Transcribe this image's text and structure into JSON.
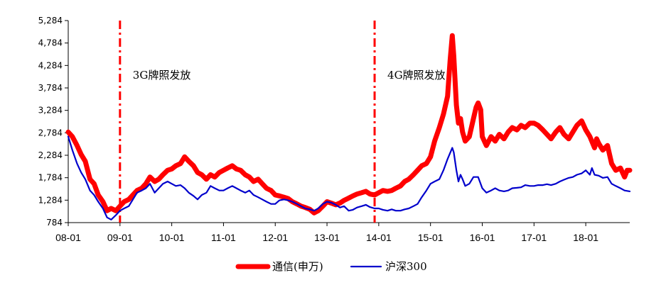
{
  "chart_data": {
    "type": "line",
    "title": "",
    "xlabel": "",
    "ylabel": "",
    "ylim": [
      784,
      5284
    ],
    "yticks": [
      784,
      1284,
      1784,
      2284,
      2784,
      3284,
      3784,
      4284,
      4784,
      5284
    ],
    "ytick_labels": [
      "784",
      "1,284",
      "1,784",
      "2,284",
      "2,784",
      "3,284",
      "3,784",
      "4,284",
      "4,784",
      "5,284"
    ],
    "xlim": [
      2008.0,
      2018.85
    ],
    "xticks": [
      2008.0,
      2009.0,
      2010.0,
      2011.0,
      2012.0,
      2013.0,
      2014.0,
      2015.0,
      2016.0,
      2017.0,
      2018.0
    ],
    "xtick_labels": [
      "08-01",
      "09-01",
      "10-01",
      "11-01",
      "12-01",
      "13-01",
      "14-01",
      "15-01",
      "16-01",
      "17-01",
      "18-01"
    ],
    "grid": false,
    "legend_position": "bottom-center",
    "series": [
      {
        "name": "通信(申万)",
        "color": "#ff0000",
        "points": [
          [
            2008.0,
            2800
          ],
          [
            2008.08,
            2700
          ],
          [
            2008.17,
            2500
          ],
          [
            2008.25,
            2300
          ],
          [
            2008.33,
            2150
          ],
          [
            2008.42,
            1750
          ],
          [
            2008.5,
            1650
          ],
          [
            2008.58,
            1400
          ],
          [
            2008.67,
            1250
          ],
          [
            2008.75,
            1050
          ],
          [
            2008.83,
            1100
          ],
          [
            2008.92,
            1050
          ],
          [
            2009.0,
            1150
          ],
          [
            2009.08,
            1250
          ],
          [
            2009.17,
            1300
          ],
          [
            2009.25,
            1400
          ],
          [
            2009.33,
            1500
          ],
          [
            2009.42,
            1550
          ],
          [
            2009.5,
            1650
          ],
          [
            2009.58,
            1800
          ],
          [
            2009.67,
            1700
          ],
          [
            2009.75,
            1750
          ],
          [
            2009.83,
            1850
          ],
          [
            2009.92,
            1950
          ],
          [
            2010.0,
            1980
          ],
          [
            2010.08,
            2050
          ],
          [
            2010.17,
            2100
          ],
          [
            2010.25,
            2250
          ],
          [
            2010.33,
            2150
          ],
          [
            2010.42,
            2050
          ],
          [
            2010.5,
            1900
          ],
          [
            2010.58,
            1850
          ],
          [
            2010.67,
            1750
          ],
          [
            2010.75,
            1850
          ],
          [
            2010.83,
            1800
          ],
          [
            2010.92,
            1900
          ],
          [
            2011.0,
            1950
          ],
          [
            2011.08,
            2000
          ],
          [
            2011.17,
            2050
          ],
          [
            2011.25,
            1980
          ],
          [
            2011.33,
            1950
          ],
          [
            2011.42,
            1850
          ],
          [
            2011.5,
            1800
          ],
          [
            2011.58,
            1700
          ],
          [
            2011.67,
            1750
          ],
          [
            2011.75,
            1650
          ],
          [
            2011.83,
            1550
          ],
          [
            2011.92,
            1500
          ],
          [
            2012.0,
            1400
          ],
          [
            2012.08,
            1380
          ],
          [
            2012.17,
            1350
          ],
          [
            2012.25,
            1320
          ],
          [
            2012.33,
            1250
          ],
          [
            2012.42,
            1200
          ],
          [
            2012.5,
            1150
          ],
          [
            2012.58,
            1120
          ],
          [
            2012.67,
            1080
          ],
          [
            2012.75,
            1000
          ],
          [
            2012.83,
            1050
          ],
          [
            2012.92,
            1150
          ],
          [
            2013.0,
            1250
          ],
          [
            2013.08,
            1220
          ],
          [
            2013.17,
            1180
          ],
          [
            2013.25,
            1220
          ],
          [
            2013.33,
            1280
          ],
          [
            2013.42,
            1330
          ],
          [
            2013.5,
            1380
          ],
          [
            2013.58,
            1420
          ],
          [
            2013.67,
            1450
          ],
          [
            2013.75,
            1480
          ],
          [
            2013.83,
            1420
          ],
          [
            2013.92,
            1400
          ],
          [
            2014.0,
            1450
          ],
          [
            2014.08,
            1500
          ],
          [
            2014.17,
            1480
          ],
          [
            2014.25,
            1500
          ],
          [
            2014.33,
            1550
          ],
          [
            2014.42,
            1600
          ],
          [
            2014.5,
            1700
          ],
          [
            2014.58,
            1750
          ],
          [
            2014.67,
            1850
          ],
          [
            2014.75,
            1950
          ],
          [
            2014.83,
            2050
          ],
          [
            2014.92,
            2100
          ],
          [
            2015.0,
            2250
          ],
          [
            2015.08,
            2600
          ],
          [
            2015.17,
            2900
          ],
          [
            2015.25,
            3200
          ],
          [
            2015.33,
            3600
          ],
          [
            2015.38,
            4400
          ],
          [
            2015.42,
            4950
          ],
          [
            2015.45,
            4500
          ],
          [
            2015.5,
            3400
          ],
          [
            2015.54,
            3000
          ],
          [
            2015.58,
            3100
          ],
          [
            2015.62,
            2800
          ],
          [
            2015.67,
            2600
          ],
          [
            2015.75,
            2700
          ],
          [
            2015.83,
            3100
          ],
          [
            2015.88,
            3350
          ],
          [
            2015.92,
            3450
          ],
          [
            2015.97,
            3300
          ],
          [
            2016.0,
            2700
          ],
          [
            2016.08,
            2500
          ],
          [
            2016.17,
            2700
          ],
          [
            2016.25,
            2600
          ],
          [
            2016.33,
            2750
          ],
          [
            2016.42,
            2650
          ],
          [
            2016.5,
            2800
          ],
          [
            2016.58,
            2900
          ],
          [
            2016.67,
            2850
          ],
          [
            2016.75,
            2950
          ],
          [
            2016.83,
            2900
          ],
          [
            2016.92,
            3000
          ],
          [
            2017.0,
            3000
          ],
          [
            2017.08,
            2950
          ],
          [
            2017.17,
            2850
          ],
          [
            2017.25,
            2750
          ],
          [
            2017.33,
            2650
          ],
          [
            2017.42,
            2800
          ],
          [
            2017.5,
            2900
          ],
          [
            2017.58,
            2750
          ],
          [
            2017.67,
            2650
          ],
          [
            2017.75,
            2800
          ],
          [
            2017.83,
            2950
          ],
          [
            2017.92,
            3050
          ],
          [
            2018.0,
            2850
          ],
          [
            2018.08,
            2700
          ],
          [
            2018.17,
            2450
          ],
          [
            2018.21,
            2650
          ],
          [
            2018.25,
            2550
          ],
          [
            2018.33,
            2400
          ],
          [
            2018.42,
            2500
          ],
          [
            2018.5,
            2100
          ],
          [
            2018.58,
            1950
          ],
          [
            2018.67,
            2000
          ],
          [
            2018.75,
            1800
          ],
          [
            2018.8,
            1950
          ],
          [
            2018.85,
            1950
          ]
        ]
      },
      {
        "name": "沪深300",
        "color": "#0000cc",
        "points": [
          [
            2008.0,
            2700
          ],
          [
            2008.08,
            2400
          ],
          [
            2008.17,
            2100
          ],
          [
            2008.25,
            1900
          ],
          [
            2008.33,
            1750
          ],
          [
            2008.42,
            1500
          ],
          [
            2008.5,
            1400
          ],
          [
            2008.58,
            1250
          ],
          [
            2008.67,
            1100
          ],
          [
            2008.75,
            900
          ],
          [
            2008.83,
            850
          ],
          [
            2008.92,
            950
          ],
          [
            2009.0,
            1050
          ],
          [
            2009.08,
            1100
          ],
          [
            2009.17,
            1150
          ],
          [
            2009.25,
            1300
          ],
          [
            2009.33,
            1450
          ],
          [
            2009.42,
            1500
          ],
          [
            2009.5,
            1550
          ],
          [
            2009.58,
            1650
          ],
          [
            2009.67,
            1450
          ],
          [
            2009.75,
            1550
          ],
          [
            2009.83,
            1650
          ],
          [
            2009.92,
            1700
          ],
          [
            2010.0,
            1650
          ],
          [
            2010.08,
            1600
          ],
          [
            2010.17,
            1620
          ],
          [
            2010.25,
            1550
          ],
          [
            2010.33,
            1450
          ],
          [
            2010.42,
            1380
          ],
          [
            2010.5,
            1300
          ],
          [
            2010.58,
            1400
          ],
          [
            2010.67,
            1450
          ],
          [
            2010.75,
            1600
          ],
          [
            2010.83,
            1550
          ],
          [
            2010.92,
            1500
          ],
          [
            2011.0,
            1500
          ],
          [
            2011.08,
            1550
          ],
          [
            2011.17,
            1600
          ],
          [
            2011.25,
            1550
          ],
          [
            2011.33,
            1500
          ],
          [
            2011.42,
            1450
          ],
          [
            2011.5,
            1500
          ],
          [
            2011.58,
            1400
          ],
          [
            2011.67,
            1350
          ],
          [
            2011.75,
            1300
          ],
          [
            2011.83,
            1250
          ],
          [
            2011.92,
            1200
          ],
          [
            2012.0,
            1200
          ],
          [
            2012.08,
            1280
          ],
          [
            2012.17,
            1300
          ],
          [
            2012.25,
            1280
          ],
          [
            2012.33,
            1250
          ],
          [
            2012.42,
            1200
          ],
          [
            2012.5,
            1150
          ],
          [
            2012.58,
            1100
          ],
          [
            2012.67,
            1080
          ],
          [
            2012.75,
            1050
          ],
          [
            2012.83,
            1100
          ],
          [
            2012.92,
            1200
          ],
          [
            2013.0,
            1250
          ],
          [
            2013.08,
            1230
          ],
          [
            2013.17,
            1180
          ],
          [
            2013.25,
            1120
          ],
          [
            2013.33,
            1150
          ],
          [
            2013.42,
            1050
          ],
          [
            2013.5,
            1070
          ],
          [
            2013.58,
            1120
          ],
          [
            2013.67,
            1150
          ],
          [
            2013.75,
            1180
          ],
          [
            2013.83,
            1130
          ],
          [
            2013.92,
            1100
          ],
          [
            2014.0,
            1100
          ],
          [
            2014.08,
            1070
          ],
          [
            2014.17,
            1050
          ],
          [
            2014.25,
            1080
          ],
          [
            2014.33,
            1050
          ],
          [
            2014.42,
            1050
          ],
          [
            2014.5,
            1080
          ],
          [
            2014.58,
            1100
          ],
          [
            2014.67,
            1150
          ],
          [
            2014.75,
            1200
          ],
          [
            2014.83,
            1350
          ],
          [
            2014.92,
            1500
          ],
          [
            2015.0,
            1650
          ],
          [
            2015.08,
            1700
          ],
          [
            2015.17,
            1750
          ],
          [
            2015.25,
            1950
          ],
          [
            2015.33,
            2200
          ],
          [
            2015.42,
            2450
          ],
          [
            2015.45,
            2350
          ],
          [
            2015.5,
            1950
          ],
          [
            2015.54,
            1700
          ],
          [
            2015.58,
            1850
          ],
          [
            2015.62,
            1750
          ],
          [
            2015.67,
            1600
          ],
          [
            2015.75,
            1650
          ],
          [
            2015.83,
            1800
          ],
          [
            2015.92,
            1800
          ],
          [
            2016.0,
            1550
          ],
          [
            2016.08,
            1450
          ],
          [
            2016.17,
            1500
          ],
          [
            2016.25,
            1550
          ],
          [
            2016.33,
            1500
          ],
          [
            2016.42,
            1480
          ],
          [
            2016.5,
            1500
          ],
          [
            2016.58,
            1550
          ],
          [
            2016.67,
            1560
          ],
          [
            2016.75,
            1570
          ],
          [
            2016.83,
            1620
          ],
          [
            2016.92,
            1600
          ],
          [
            2017.0,
            1600
          ],
          [
            2017.08,
            1620
          ],
          [
            2017.17,
            1620
          ],
          [
            2017.25,
            1640
          ],
          [
            2017.33,
            1620
          ],
          [
            2017.42,
            1650
          ],
          [
            2017.5,
            1700
          ],
          [
            2017.58,
            1740
          ],
          [
            2017.67,
            1780
          ],
          [
            2017.75,
            1800
          ],
          [
            2017.83,
            1850
          ],
          [
            2017.92,
            1880
          ],
          [
            2018.0,
            1950
          ],
          [
            2018.08,
            1850
          ],
          [
            2018.12,
            2000
          ],
          [
            2018.17,
            1850
          ],
          [
            2018.25,
            1830
          ],
          [
            2018.33,
            1780
          ],
          [
            2018.42,
            1800
          ],
          [
            2018.5,
            1650
          ],
          [
            2018.58,
            1600
          ],
          [
            2018.67,
            1550
          ],
          [
            2018.75,
            1500
          ],
          [
            2018.85,
            1480
          ]
        ]
      }
    ],
    "annotations": [
      {
        "x": 2009.0,
        "label": "3G牌照发放",
        "line_color": "#ff0000",
        "line_style": "dash-dot"
      },
      {
        "x": 2013.92,
        "label": "4G牌照发放",
        "line_color": "#ff0000",
        "line_style": "dash-dot"
      }
    ],
    "legend": [
      {
        "label": "通信(申万)",
        "color": "#ff0000"
      },
      {
        "label": "沪深300",
        "color": "#0000cc"
      }
    ]
  }
}
